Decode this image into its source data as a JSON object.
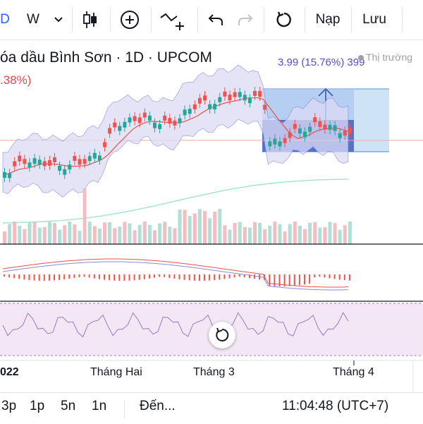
{
  "toolbar": {
    "interval_d": "D",
    "interval_w": "W",
    "deposit": "Nạp",
    "save": "Lưu",
    "icons": [
      "chevron-down-icon",
      "candlestick-icon",
      "add-indicator-icon",
      "drawing-tool-icon",
      "undo-icon",
      "redo-icon",
      "refresh-icon"
    ]
  },
  "legend": {
    "title": "óa dầu Bình Sơn · 1D · UPCOM",
    "change_pct": ".38%)",
    "measure": "3.99 (15.76%) 399",
    "market_status": "Thị trường"
  },
  "xaxis": {
    "labels": [
      "022",
      "Tháng Hai",
      "Tháng 3",
      "Tháng 4"
    ]
  },
  "bottom": {
    "timeframes": [
      "3p",
      "1p",
      "5n",
      "1n"
    ],
    "goto": "Đến...",
    "clock": "11:04:48 (UTC+7)"
  },
  "colors": {
    "up": "#26a69a",
    "down": "#ef5350",
    "bb_fill": "#dcdcf4",
    "rsi_band": "#f3e6f5",
    "measure_fill": "#5b7fd9"
  }
}
